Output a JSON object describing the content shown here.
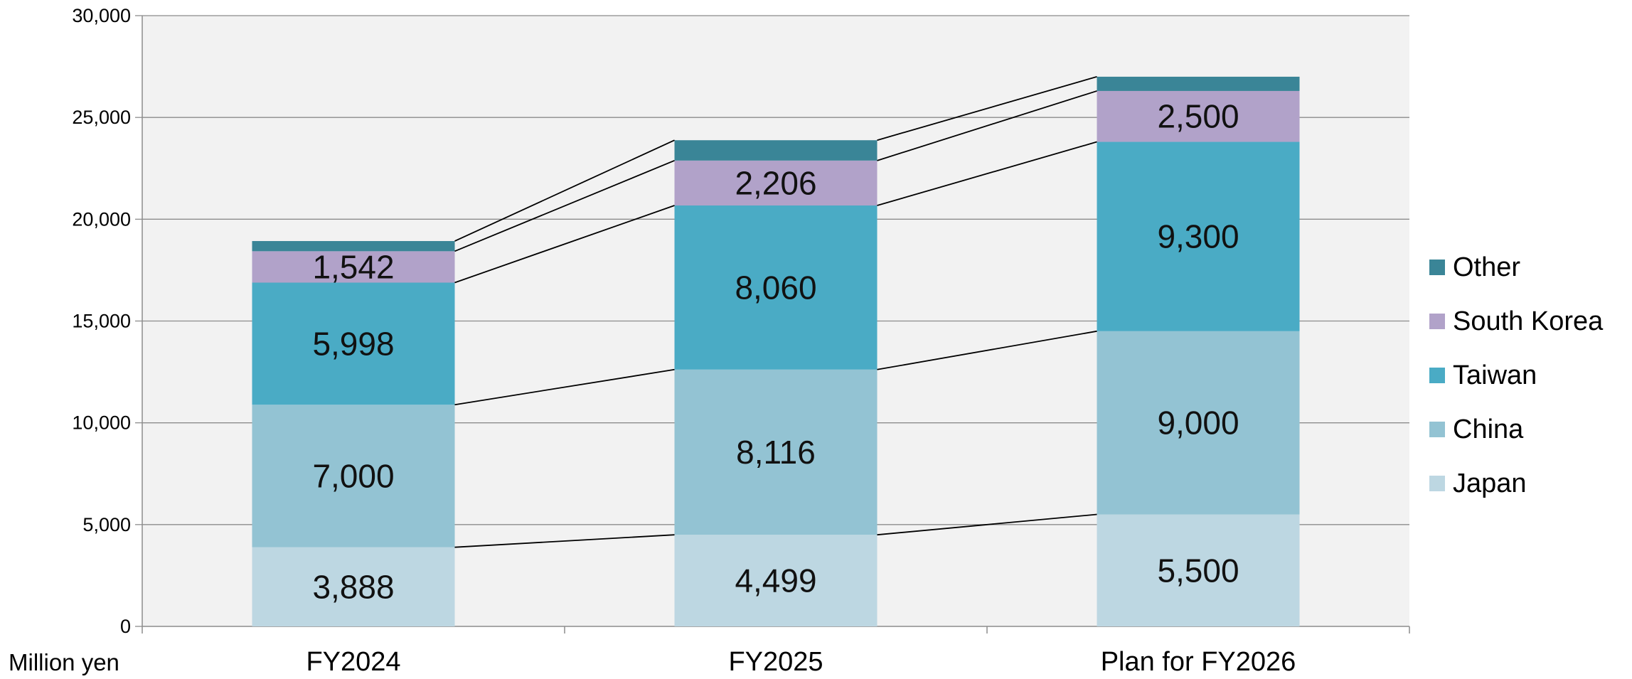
{
  "chart_data": {
    "type": "bar",
    "stacked": true,
    "categories": [
      "FY2024",
      "FY2025",
      "Plan for FY2026"
    ],
    "unit_label": "Million yen",
    "ylim": [
      0,
      30000
    ],
    "yticks": [
      0,
      5000,
      10000,
      15000,
      20000,
      25000,
      30000
    ],
    "ytick_labels": [
      "0",
      "5,000",
      "10,000",
      "15,000",
      "20,000",
      "25,000",
      "30,000"
    ],
    "grid": true,
    "legend_position": "right",
    "series": [
      {
        "name": "Japan",
        "values": [
          3888,
          4499,
          5500
        ],
        "labels": [
          "3,888",
          "4,499",
          "5,500"
        ],
        "color": "#bdd7e2"
      },
      {
        "name": "China",
        "values": [
          7000,
          8116,
          9000
        ],
        "labels": [
          "7,000",
          "8,116",
          "9,000"
        ],
        "color": "#93c3d3"
      },
      {
        "name": "Taiwan",
        "values": [
          5998,
          8060,
          9300
        ],
        "labels": [
          "5,998",
          "8,060",
          "9,300"
        ],
        "color": "#4aabc5"
      },
      {
        "name": "South Korea",
        "values": [
          1542,
          2206,
          2500
        ],
        "labels": [
          "1,542",
          "2,206",
          "2,500"
        ],
        "color": "#b1a2c9"
      },
      {
        "name": "Other",
        "values": [
          500,
          1000,
          700
        ],
        "labels": [
          "",
          "",
          ""
        ],
        "color": "#3a8597"
      }
    ]
  }
}
